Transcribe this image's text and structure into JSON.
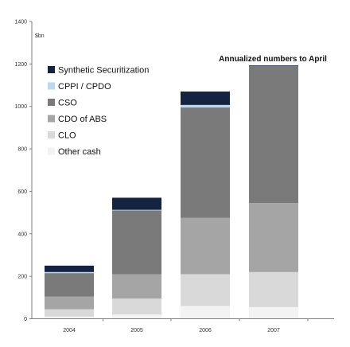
{
  "chart_data": {
    "type": "bar",
    "stacked": true,
    "categories": [
      "2004",
      "2005",
      "2006",
      "2007"
    ],
    "unit_label": "$bn",
    "annotation": "Annualized numbers to April",
    "ylim": [
      0,
      1400
    ],
    "yticks": [
      0,
      200,
      400,
      600,
      800,
      1000,
      1200,
      1400
    ],
    "grid": false,
    "legend_position": "top-left",
    "series": [
      {
        "name": "Other cash",
        "color": "#f3f3f3",
        "values": [
          10,
          20,
          60,
          55
        ]
      },
      {
        "name": "CLO",
        "color": "#d9d9d9",
        "values": [
          35,
          75,
          150,
          165
        ]
      },
      {
        "name": "CDO of ABS",
        "color": "#a5a5a5",
        "values": [
          60,
          115,
          265,
          325
        ]
      },
      {
        "name": "CSO",
        "color": "#7a7a7a",
        "values": [
          110,
          300,
          520,
          645
        ]
      },
      {
        "name": "CPPI / CPDO",
        "color": "#bdd7ee",
        "values": [
          5,
          3,
          12,
          0
        ]
      },
      {
        "name": "Synthetic Securitization",
        "color": "#14233f",
        "values": [
          30,
          57,
          63,
          3
        ]
      }
    ],
    "legend_order": [
      "Synthetic Securitization",
      "CPPI / CPDO",
      "CSO",
      "CDO of ABS",
      "CLO",
      "Other cash"
    ]
  }
}
